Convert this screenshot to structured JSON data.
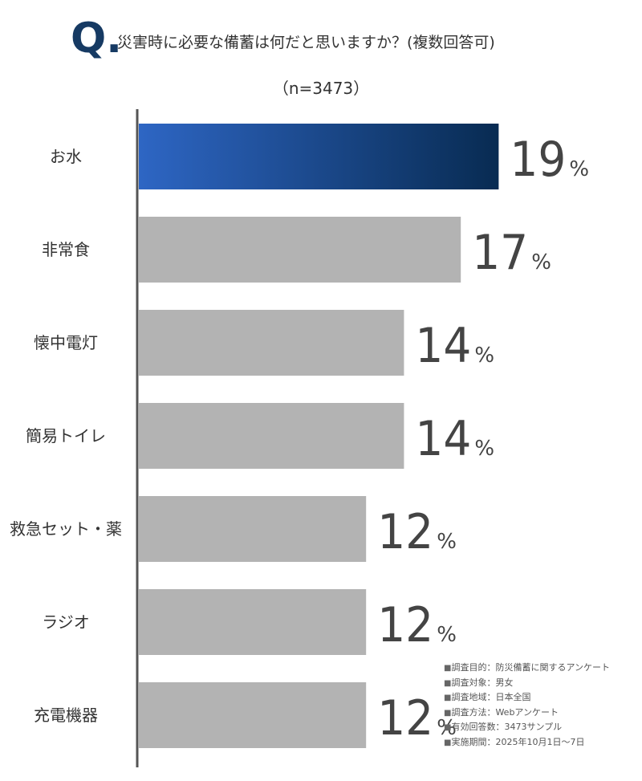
{
  "header": {
    "q_mark": "Q.",
    "question": "災害時に必要な備蓄は何だと思いますか？(複数回答可)",
    "sample": "（n=3473）"
  },
  "chart_data": {
    "type": "bar",
    "orientation": "horizontal",
    "categories": [
      "お水",
      "非常食",
      "懐中電灯",
      "簡易トイレ",
      "救急セット・薬",
      "ラジオ",
      "充電機器"
    ],
    "values": [
      19,
      17,
      14,
      14,
      12,
      12,
      12
    ],
    "unit": "%",
    "xlim": [
      0,
      25
    ],
    "highlight_index": 0,
    "colors": {
      "highlight_start": "#2e66c4",
      "highlight_end": "#082b52",
      "bar": "#b3b3b3",
      "axis": "#555555",
      "value_text": "#444444"
    }
  },
  "notes": [
    "調査目的：防災備蓄に関するアンケート",
    "調査対象：男女",
    "調査地域：日本全国",
    "調査方法：Webアンケート",
    "有効回答数：3473サンプル",
    "実施期間：2025年10月1日～7日"
  ]
}
